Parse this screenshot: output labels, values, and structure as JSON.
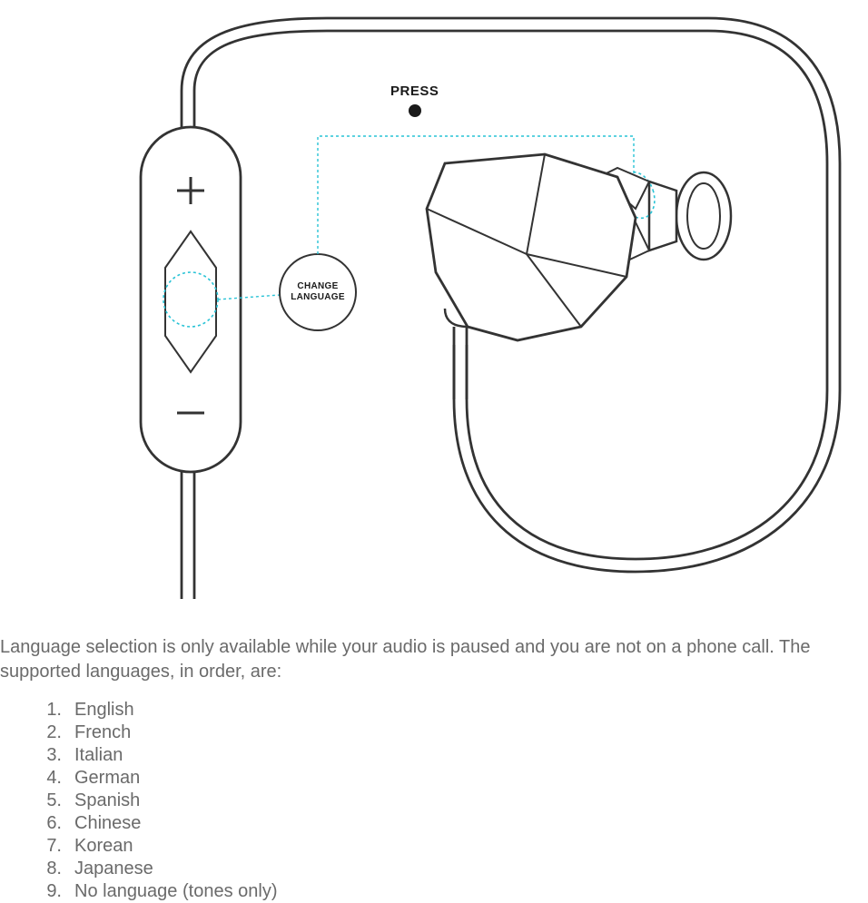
{
  "diagram": {
    "press_label": "PRESS",
    "change_label_line1": "CHANGE",
    "change_label_line2": "LANGUAGE",
    "colors": {
      "stroke": "#333333",
      "dash": "#29c3d6",
      "fill_bg": "#ffffff",
      "dot": "#1a1a1a"
    },
    "stroke_widths": {
      "outline": 2.8,
      "thin": 2,
      "dash": 1.4
    }
  },
  "body_text": "Language selection is only available while your audio is paused and you are not on a phone call. The supported languages, in order, are:",
  "languages": [
    "English",
    "French",
    "Italian",
    "German",
    "Spanish",
    "Chinese",
    "Korean",
    "Japanese",
    "No language (tones only)"
  ]
}
